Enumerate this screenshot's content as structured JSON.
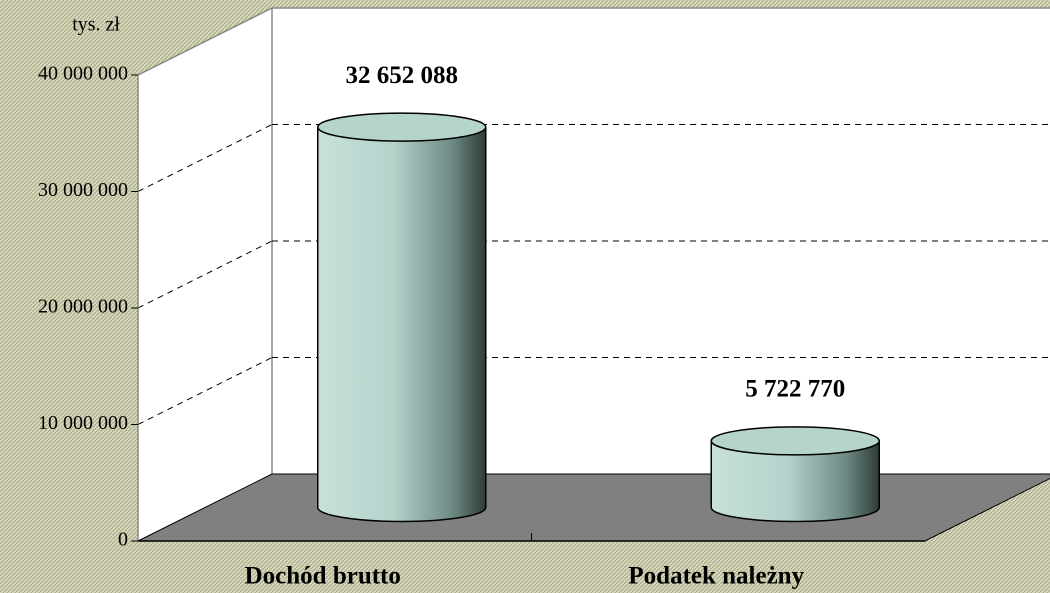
{
  "chart_data": {
    "type": "bar",
    "ylabel": "tys. zł",
    "categories": [
      "Dochód brutto",
      "Podatek należny"
    ],
    "values": [
      32652088,
      5722770
    ],
    "value_labels": [
      "32 652 088",
      "5 722 770"
    ],
    "color": "#b4d4cc",
    "ylim": [
      0,
      40000000
    ],
    "yticks": [
      {
        "value": 0,
        "label": "0"
      },
      {
        "value": 10000000,
        "label": "10 000 000"
      },
      {
        "value": 20000000,
        "label": "20 000 000"
      },
      {
        "value": 30000000,
        "label": "30 000 000"
      },
      {
        "value": 40000000,
        "label": "40 000 000"
      }
    ],
    "grid": true
  }
}
